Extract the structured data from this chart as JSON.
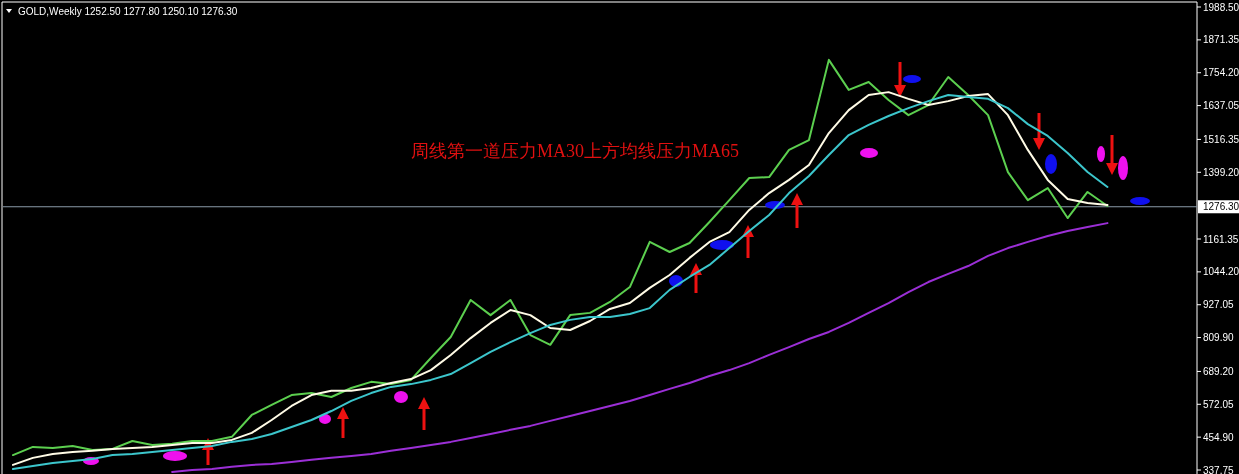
{
  "chart_data": {
    "type": "line",
    "title": "GOLD,Weekly  1252.50 1277.80 1250.10 1276.30",
    "annotations": [
      "周线第一道压力MA30上方均线压力MA65"
    ],
    "categories": [
      null,
      null,
      null,
      null,
      null,
      null,
      null,
      null,
      null,
      null,
      null,
      null,
      null,
      null,
      null,
      null,
      null,
      null,
      null,
      null,
      null,
      null,
      null,
      null,
      null,
      null,
      null,
      null,
      null,
      null,
      null,
      null,
      null,
      null,
      null,
      null,
      null,
      null,
      null,
      null,
      null,
      null,
      null,
      null,
      null,
      null,
      null,
      null,
      null,
      null,
      null,
      null,
      null,
      null,
      null,
      null,
      null,
      null,
      null,
      null
    ],
    "series": [
      {
        "color": "#5ccf4f",
        "values": [
          391,
          420,
          416,
          423,
          409,
          413,
          441,
          427,
          431,
          441,
          441,
          456,
          534,
          570,
          605,
          612,
          598,
          630,
          652,
          644,
          659,
          737,
          812,
          944,
          890,
          944,
          819,
          784,
          890,
          898,
          937,
          990,
          1151,
          1115,
          1147,
          1222,
          1300,
          1379,
          1382,
          1479,
          1514,
          1800,
          1693,
          1721,
          1657,
          1603,
          1639,
          1739,
          1675,
          1603,
          1400,
          1300,
          1343,
          1236,
          1329,
          1279,
          null,
          null,
          null,
          null
        ]
      },
      {
        "color": "#fffbe6",
        "values": [
          356,
          381,
          395,
          402,
          406,
          413,
          416,
          420,
          427,
          434,
          434,
          445,
          470,
          516,
          566,
          605,
          620,
          620,
          630,
          648,
          662,
          694,
          748,
          808,
          862,
          908,
          890,
          844,
          837,
          869,
          912,
          933,
          987,
          1033,
          1094,
          1151,
          1186,
          1265,
          1325,
          1372,
          1425,
          1539,
          1621,
          1675,
          1685,
          1661,
          1639,
          1653,
          1671,
          1678,
          1603,
          1479,
          1372,
          1304,
          1290,
          1283,
          null,
          null,
          null,
          null
        ]
      },
      {
        "color": "#3cc6cc",
        "values": [
          341,
          352,
          363,
          370,
          377,
          391,
          395,
          402,
          409,
          416,
          423,
          438,
          448,
          466,
          491,
          516,
          548,
          584,
          612,
          634,
          644,
          659,
          680,
          719,
          759,
          794,
          826,
          855,
          873,
          883,
          883,
          894,
          915,
          980,
          1026,
          1069,
          1129,
          1190,
          1247,
          1325,
          1386,
          1461,
          1532,
          1568,
          1600,
          1628,
          1653,
          1675,
          1668,
          1661,
          1628,
          1571,
          1529,
          1468,
          1400,
          1347,
          null,
          null,
          null,
          null
        ]
      },
      {
        "color": "#9b2fd6",
        "values": [
          null,
          null,
          null,
          null,
          null,
          null,
          null,
          null,
          331,
          338,
          341,
          349,
          356,
          359,
          366,
          374,
          381,
          388,
          395,
          406,
          416,
          427,
          438,
          452,
          466,
          481,
          495,
          513,
          530,
          548,
          566,
          584,
          605,
          627,
          648,
          673,
          694,
          719,
          748,
          776,
          805,
          830,
          862,
          898,
          933,
          972,
          1008,
          1037,
          1065,
          1101,
          1129,
          1151,
          1172,
          1190,
          1204,
          1218,
          null,
          null,
          null,
          null
        ]
      }
    ],
    "ylim": [
      323.5,
      2002.8
    ],
    "yticks": [
      {
        "value": 337.75,
        "label": "337.75"
      },
      {
        "value": 454.9,
        "label": "454.90"
      },
      {
        "value": 572.05,
        "label": "572.05"
      },
      {
        "value": 689.2,
        "label": "689.20"
      },
      {
        "value": 809.9,
        "label": "809.90"
      },
      {
        "value": 927.05,
        "label": "927.05"
      },
      {
        "value": 1044.2,
        "label": "1044.20"
      },
      {
        "value": 1161.35,
        "label": "1161.35"
      },
      {
        "value": 1399.2,
        "label": "1399.20"
      },
      {
        "value": 1516.35,
        "label": "1516.35"
      },
      {
        "value": 1637.05,
        "label": "1637.05"
      },
      {
        "value": 1754.2,
        "label": "1754.20"
      },
      {
        "value": 1871.35,
        "label": "1871.35"
      },
      {
        "value": 1988.5,
        "label": "1988.50"
      }
    ],
    "ref_lines": [
      {
        "axis": "y",
        "value": 1276.3,
        "label": "1276.30",
        "color": "#8a9aa8"
      }
    ]
  }
}
